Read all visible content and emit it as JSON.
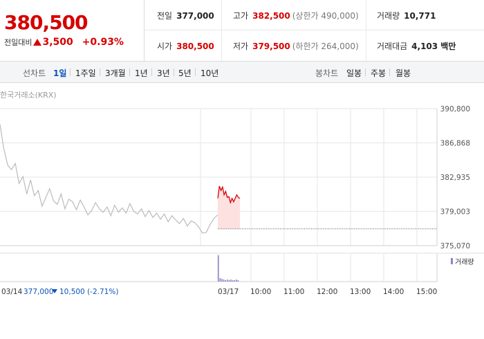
{
  "header": {
    "price": "380,500",
    "change_label": "전일대비",
    "change_value": "3,500",
    "change_pct": "+0.93%",
    "prev_close_label": "전일",
    "prev_close": "377,000",
    "high_label": "고가",
    "high": "382,500",
    "upper_limit": "(상한가 490,000)",
    "volume_label": "거래량",
    "volume": "10,771",
    "open_label": "시가",
    "open": "380,500",
    "low_label": "저가",
    "low": "379,500",
    "lower_limit": "(하한가 264,000)",
    "amount_label": "거래대금",
    "amount": "4,103 백만"
  },
  "tabs": {
    "line_label": "선차트",
    "line_items": [
      "1일",
      "1주일",
      "3개월",
      "1년",
      "3년",
      "5년",
      "10년"
    ],
    "candle_label": "봉차트",
    "candle_items": [
      "일봉",
      "주봉",
      "월봉"
    ]
  },
  "colors": {
    "up": "#d60000",
    "down": "#0a52b8",
    "prev": "#bbbbbb",
    "fill": "#fde0e0"
  },
  "chart_data": {
    "type": "line",
    "source_label": "한국거래소(KRX)",
    "ylim": [
      375070,
      390800
    ],
    "yticks": [
      "390,800",
      "386,868",
      "382,935",
      "379,003",
      "375,070"
    ],
    "xticks": [
      "03/14",
      "03/17",
      "10:00",
      "11:00",
      "12:00",
      "13:00",
      "14:00",
      "15:00"
    ],
    "volume_legend": "거래량",
    "prev_summary": "377,000",
    "prev_change": "10,500 (-2.71%)",
    "prev_close": 377000,
    "series": [
      {
        "values": [
          389000,
          386200,
          384300,
          383800,
          384500,
          382200,
          383000,
          381000,
          382600,
          380800,
          381400,
          379600,
          380600,
          381600,
          380200,
          379800,
          381000,
          379300,
          380400,
          380100,
          379200,
          380300,
          379500,
          378600,
          379100,
          380000,
          379300,
          378900,
          379500,
          378500,
          379700,
          378900,
          379400,
          378800,
          379900,
          379000,
          378700,
          379300,
          378400,
          379100,
          378300,
          378800,
          378100,
          378700,
          377800,
          378500,
          378000,
          377600,
          378200,
          377300,
          377900,
          377700,
          377200,
          376500,
          376600,
          377500,
          378200,
          378600
        ]
      },
      {
        "values": [
          380500,
          381900,
          381400,
          381800,
          380900,
          381300,
          380600,
          380700,
          380000,
          380500,
          380100,
          380500,
          380900,
          380600,
          380500
        ]
      }
    ]
  }
}
